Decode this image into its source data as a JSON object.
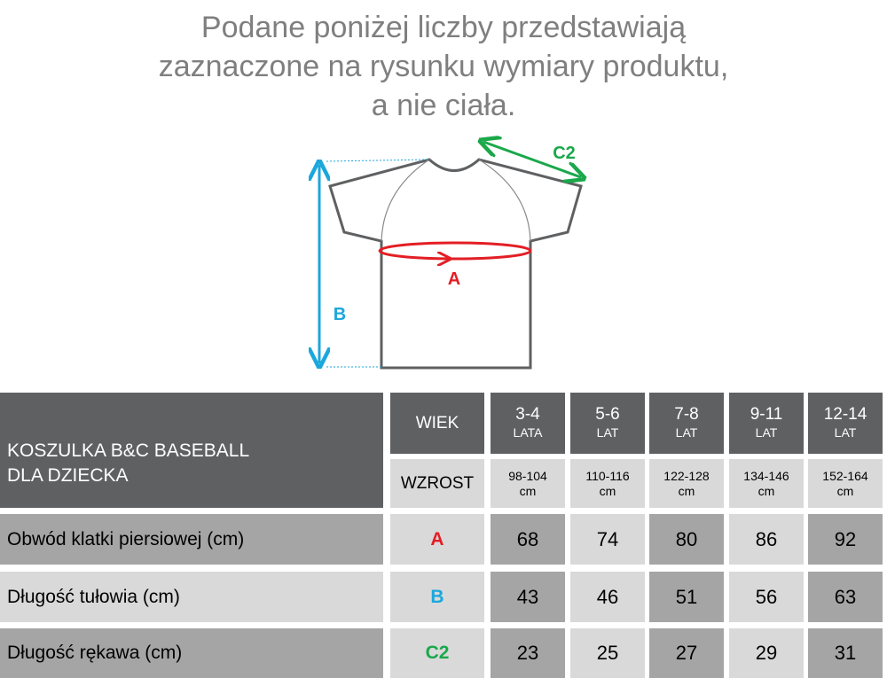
{
  "header": {
    "lines": [
      "Podane poniżej liczby przedstawiają",
      "zaznaczone na rysunku wymiary produktu,",
      "a nie ciała."
    ]
  },
  "diagram": {
    "labels": [
      "A",
      "B",
      "C2"
    ]
  },
  "table": {
    "title": [
      "KOSZULKA B&C BASEBALL",
      "DLA DZIECKA"
    ],
    "age_label": "WIEK",
    "height_label": "WZROST",
    "ages": [
      [
        "3-4",
        "LATA"
      ],
      [
        "5-6",
        "LAT"
      ],
      [
        "7-8",
        "LAT"
      ],
      [
        "9-11",
        "LAT"
      ],
      [
        "12-14",
        "LAT"
      ]
    ],
    "heights": [
      [
        "98-104",
        "cm"
      ],
      [
        "110-116",
        "cm"
      ],
      [
        "122-128",
        "cm"
      ],
      [
        "134-146",
        "cm"
      ],
      [
        "152-164",
        "cm"
      ]
    ],
    "rows": [
      {
        "label": "Obwód klatki piersiowej (cm)",
        "code": "A",
        "values": [
          68,
          74,
          80,
          86,
          92
        ]
      },
      {
        "label": "Długość tułowia (cm)",
        "code": "B",
        "values": [
          43,
          46,
          51,
          56,
          63
        ]
      },
      {
        "label": "Długość rękawa (cm)",
        "code": "C2",
        "values": [
          23,
          25,
          27,
          29,
          31
        ]
      }
    ]
  }
}
